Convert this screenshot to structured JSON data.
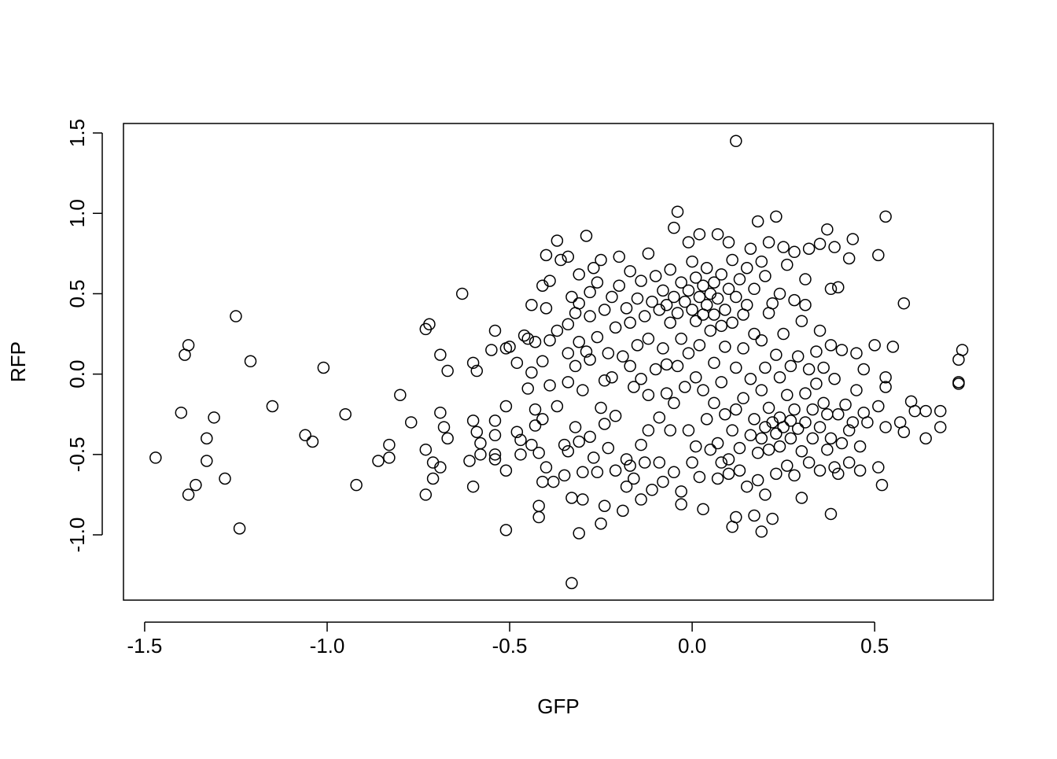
{
  "chart_data": {
    "type": "scatter",
    "xlabel": "GFP",
    "ylabel": "RFP",
    "xlim": [
      -1.558,
      0.825
    ],
    "ylim": [
      -1.406,
      1.559
    ],
    "xticks": [
      -1.5,
      {
        "value": -1.0,
        "label": "-1.0"
      },
      -0.5,
      {
        "value": 0.0,
        "label": "0.0"
      },
      0.5
    ],
    "yticks": [
      {
        "value": -1.0,
        "label": "-1.0"
      },
      -0.5,
      {
        "value": 0.0,
        "label": "0.0"
      },
      0.5,
      {
        "value": 1.0,
        "label": "1.0"
      },
      1.5
    ],
    "color": "#000000",
    "x": [
      -1.47,
      -1.4,
      -1.38,
      -1.39,
      -1.38,
      -1.36,
      -1.33,
      -1.33,
      -1.31,
      -1.28,
      -1.25,
      -1.24,
      -1.21,
      -1.15,
      -1.06,
      -1.04,
      -1.01,
      -0.95,
      -0.92,
      -0.86,
      -0.83,
      -0.83,
      -0.8,
      -0.77,
      -0.72,
      -0.73,
      -0.73,
      -0.73,
      -0.71,
      -0.71,
      -0.69,
      -0.69,
      -0.69,
      -0.68,
      -0.67,
      -0.67,
      -0.63,
      -0.61,
      -0.6,
      -0.6,
      -0.6,
      -0.59,
      -0.59,
      -0.58,
      -0.58,
      -0.55,
      -0.54,
      -0.54,
      -0.54,
      -0.54,
      -0.54,
      -0.51,
      -0.51,
      -0.51,
      -0.51,
      -0.5,
      -0.48,
      -0.48,
      -0.47,
      -0.47,
      -0.46,
      -0.45,
      -0.45,
      -0.44,
      -0.44,
      -0.44,
      -0.43,
      -0.43,
      -0.43,
      -0.42,
      -0.42,
      -0.42,
      -0.41,
      -0.41,
      -0.41,
      -0.41,
      -0.4,
      -0.4,
      -0.4,
      -0.39,
      -0.39,
      -0.39,
      -0.38,
      -0.37,
      -0.37,
      -0.37,
      -0.36,
      -0.35,
      -0.35,
      -0.34,
      -0.34,
      -0.34,
      -0.34,
      -0.34,
      -0.33,
      -0.33,
      -0.33,
      -0.32,
      -0.32,
      -0.32,
      -0.31,
      -0.31,
      -0.31,
      -0.31,
      -0.31,
      -0.3,
      -0.3,
      -0.3,
      -0.29,
      -0.29,
      -0.28,
      -0.28,
      -0.28,
      -0.28,
      -0.27,
      -0.27,
      -0.26,
      -0.26,
      -0.26,
      -0.25,
      -0.25,
      -0.25,
      -0.24,
      -0.24,
      -0.24,
      -0.24,
      -0.23,
      -0.23,
      -0.22,
      -0.22,
      -0.21,
      -0.21,
      -0.21,
      -0.2,
      -0.2,
      -0.19,
      -0.19,
      -0.18,
      -0.18,
      -0.18,
      -0.17,
      -0.17,
      -0.17,
      -0.17,
      -0.16,
      -0.16,
      -0.15,
      -0.15,
      -0.14,
      -0.14,
      -0.14,
      -0.14,
      -0.13,
      -0.13,
      -0.12,
      -0.12,
      -0.12,
      -0.12,
      -0.11,
      -0.11,
      -0.1,
      -0.1,
      -0.09,
      -0.09,
      -0.09,
      -0.08,
      -0.08,
      -0.08,
      -0.07,
      -0.07,
      -0.07,
      -0.06,
      -0.06,
      -0.06,
      -0.05,
      -0.05,
      -0.05,
      -0.05,
      -0.04,
      -0.04,
      -0.04,
      -0.03,
      -0.03,
      -0.03,
      -0.03,
      -0.02,
      -0.02,
      -0.01,
      -0.01,
      -0.01,
      -0.01,
      0.0,
      0.0,
      0.0,
      0.01,
      0.01,
      0.01,
      0.01,
      0.02,
      0.02,
      0.02,
      0.02,
      0.03,
      0.03,
      0.03,
      0.03,
      0.04,
      0.04,
      0.04,
      0.05,
      0.05,
      0.05,
      0.06,
      0.06,
      0.06,
      0.06,
      0.07,
      0.07,
      0.07,
      0.07,
      0.08,
      0.08,
      0.08,
      0.08,
      0.09,
      0.09,
      0.09,
      0.1,
      0.1,
      0.1,
      0.1,
      0.11,
      0.11,
      0.11,
      0.11,
      0.12,
      0.12,
      0.12,
      0.12,
      0.12,
      0.13,
      0.13,
      0.13,
      0.14,
      0.14,
      0.14,
      0.15,
      0.15,
      0.15,
      0.16,
      0.16,
      0.16,
      0.17,
      0.17,
      0.17,
      0.17,
      0.18,
      0.18,
      0.18,
      0.19,
      0.19,
      0.19,
      0.19,
      0.19,
      0.2,
      0.2,
      0.2,
      0.2,
      0.21,
      0.21,
      0.21,
      0.21,
      0.22,
      0.22,
      0.22,
      0.23,
      0.23,
      0.23,
      0.23,
      0.24,
      0.24,
      0.24,
      0.24,
      0.25,
      0.25,
      0.25,
      0.26,
      0.26,
      0.26,
      0.27,
      0.27,
      0.27,
      0.28,
      0.28,
      0.28,
      0.28,
      0.29,
      0.29,
      0.3,
      0.3,
      0.3,
      0.31,
      0.31,
      0.31,
      0.31,
      0.32,
      0.32,
      0.32,
      0.33,
      0.33,
      0.34,
      0.34,
      0.35,
      0.35,
      0.35,
      0.35,
      0.36,
      0.36,
      0.37,
      0.37,
      0.37,
      0.38,
      0.38,
      0.38,
      0.38,
      0.39,
      0.39,
      0.39,
      0.4,
      0.4,
      0.4,
      0.41,
      0.41,
      0.42,
      0.43,
      0.43,
      0.43,
      0.44,
      0.44,
      0.45,
      0.45,
      0.46,
      0.46,
      0.47,
      0.47,
      0.48,
      0.74,
      0.73,
      0.73,
      0.73,
      0.68,
      0.68,
      0.64,
      0.64,
      0.61,
      0.6,
      0.58,
      0.58,
      0.57,
      0.53,
      0.55,
      0.53,
      0.53,
      0.53,
      0.51,
      0.52,
      0.51,
      0.5,
      0.51
    ],
    "values": [
      -0.52,
      -0.24,
      0.18,
      0.12,
      -0.75,
      -0.69,
      -0.4,
      -0.54,
      -0.27,
      -0.65,
      0.36,
      -0.96,
      0.08,
      -0.2,
      -0.38,
      -0.42,
      0.04,
      -0.25,
      -0.69,
      -0.54,
      -0.44,
      -0.52,
      -0.13,
      -0.3,
      0.31,
      0.28,
      -0.47,
      -0.75,
      -0.65,
      -0.55,
      0.12,
      -0.24,
      -0.58,
      -0.33,
      -0.4,
      0.02,
      0.5,
      -0.54,
      -0.29,
      0.07,
      -0.7,
      -0.36,
      0.02,
      -0.43,
      -0.5,
      0.15,
      0.27,
      -0.29,
      -0.38,
      -0.5,
      -0.53,
      0.16,
      -0.97,
      -0.2,
      -0.6,
      0.17,
      0.07,
      -0.36,
      -0.41,
      -0.5,
      0.24,
      0.22,
      -0.09,
      0.43,
      0.01,
      -0.44,
      0.2,
      -0.22,
      -0.32,
      -0.89,
      -0.82,
      -0.49,
      0.55,
      0.08,
      -0.28,
      -0.67,
      0.74,
      0.41,
      -0.58,
      0.58,
      0.21,
      -0.07,
      -0.67,
      0.83,
      0.27,
      -0.2,
      0.71,
      -0.44,
      -0.63,
      0.73,
      0.31,
      0.13,
      -0.05,
      -0.48,
      0.48,
      -0.77,
      -1.3,
      0.38,
      0.05,
      -0.33,
      -0.99,
      0.62,
      0.44,
      0.2,
      -0.42,
      -0.1,
      -0.61,
      -0.78,
      0.86,
      0.14,
      0.51,
      0.36,
      0.09,
      -0.39,
      0.66,
      -0.52,
      0.57,
      0.23,
      -0.61,
      0.71,
      -0.21,
      -0.93,
      0.4,
      -0.04,
      -0.31,
      -0.82,
      0.13,
      -0.46,
      0.48,
      -0.02,
      0.29,
      -0.26,
      -0.6,
      0.55,
      0.73,
      0.11,
      -0.85,
      0.41,
      -0.53,
      -0.7,
      0.64,
      0.32,
      0.05,
      -0.57,
      -0.08,
      -0.65,
      0.47,
      0.18,
      0.58,
      -0.03,
      -0.44,
      -0.78,
      0.36,
      -0.55,
      0.75,
      0.22,
      -0.13,
      -0.35,
      0.45,
      -0.72,
      0.61,
      0.03,
      0.4,
      -0.27,
      -0.55,
      0.52,
      0.16,
      -0.67,
      0.43,
      0.06,
      -0.12,
      0.32,
      0.65,
      -0.35,
      0.91,
      0.48,
      -0.18,
      -0.61,
      1.01,
      0.38,
      0.05,
      0.57,
      0.22,
      -0.73,
      -0.81,
      0.45,
      -0.08,
      0.82,
      0.52,
      0.13,
      -0.35,
      0.7,
      0.4,
      -0.55,
      0.6,
      0.33,
      -0.02,
      -0.45,
      0.87,
      0.48,
      0.18,
      -0.64,
      0.55,
      0.37,
      -0.1,
      -0.84,
      0.43,
      0.66,
      -0.28,
      0.5,
      0.27,
      -0.47,
      0.57,
      0.37,
      0.07,
      -0.18,
      0.87,
      0.47,
      -0.43,
      -0.65,
      0.62,
      0.3,
      -0.05,
      -0.55,
      0.4,
      0.17,
      -0.25,
      0.53,
      0.82,
      -0.53,
      -0.62,
      0.71,
      0.32,
      -0.35,
      -0.95,
      1.45,
      0.48,
      0.04,
      -0.22,
      -0.89,
      0.59,
      -0.46,
      -0.6,
      0.37,
      0.16,
      -0.15,
      0.66,
      0.43,
      -0.7,
      0.78,
      -0.03,
      -0.38,
      0.53,
      0.25,
      -0.28,
      -0.88,
      0.95,
      -0.49,
      -0.66,
      0.7,
      0.21,
      -0.1,
      -0.4,
      -0.98,
      0.61,
      0.04,
      -0.33,
      -0.75,
      0.82,
      0.38,
      -0.21,
      -0.47,
      0.44,
      -0.3,
      -0.9,
      0.98,
      0.12,
      -0.37,
      -0.62,
      0.5,
      -0.02,
      -0.27,
      -0.45,
      0.79,
      0.25,
      -0.33,
      0.68,
      -0.13,
      -0.57,
      0.05,
      -0.29,
      -0.4,
      0.76,
      0.46,
      -0.22,
      -0.63,
      0.11,
      -0.34,
      0.33,
      -0.48,
      -0.77,
      0.59,
      0.43,
      -0.12,
      -0.3,
      0.78,
      0.03,
      -0.55,
      -0.22,
      -0.4,
      0.14,
      -0.06,
      0.81,
      0.27,
      -0.33,
      -0.6,
      -0.18,
      0.04,
      0.9,
      -0.47,
      -0.25,
      0.53,
      0.18,
      -0.87,
      -0.4,
      0.79,
      -0.03,
      -0.58,
      0.54,
      -0.25,
      -0.62,
      0.15,
      -0.43,
      -0.19,
      0.72,
      -0.35,
      -0.55,
      0.84,
      -0.3,
      0.13,
      -0.1,
      -0.45,
      -0.6,
      0.03,
      -0.24,
      -0.3,
      0.15,
      0.09,
      -0.05,
      -0.06,
      -0.23,
      -0.33,
      -0.4,
      -0.23,
      -0.23,
      -0.17,
      -0.36,
      0.44,
      -0.3,
      0.98,
      0.17,
      -0.08,
      -0.02,
      -0.33,
      -0.58,
      -0.69,
      0.74,
      0.18,
      -0.2
    ]
  }
}
